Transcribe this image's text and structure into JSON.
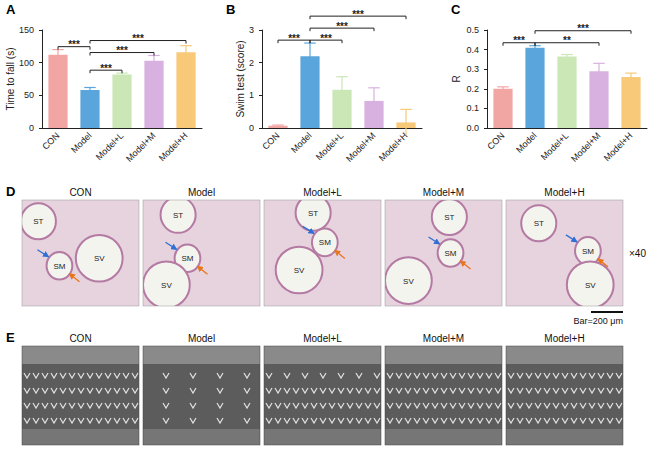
{
  "chart_data": [
    {
      "panel": "A",
      "type": "bar",
      "y_label": "Time to fall (s)",
      "categories": [
        "CON",
        "Model",
        "Model+L",
        "Model+M",
        "Model+H"
      ],
      "values": [
        112,
        58,
        82,
        103,
        116
      ],
      "errors": [
        8,
        4,
        2,
        8,
        10
      ],
      "colors": [
        "#f2a6a4",
        "#5aa6dc",
        "#cbe7b6",
        "#d9b1e1",
        "#f7c978"
      ],
      "ylim": [
        0,
        150
      ],
      "yticks": [
        0,
        50,
        100,
        150
      ],
      "grid": false,
      "comparisons": [
        {
          "groups": [
            "CON",
            "Model"
          ],
          "label": "***"
        },
        {
          "groups": [
            "Model",
            "Model+L"
          ],
          "label": "***"
        },
        {
          "groups": [
            "Model",
            "Model+M"
          ],
          "label": "***"
        },
        {
          "groups": [
            "Model",
            "Model+H"
          ],
          "label": "***"
        }
      ]
    },
    {
      "panel": "B",
      "type": "bar",
      "y_label": "Swim test (score)",
      "categories": [
        "CON",
        "Model",
        "Model+L",
        "Model+M",
        "Model+H"
      ],
      "values": [
        0.07,
        2.2,
        1.17,
        0.83,
        0.17
      ],
      "errors": [
        0.02,
        0.4,
        0.4,
        0.4,
        0.4
      ],
      "colors": [
        "#f2a6a4",
        "#5aa6dc",
        "#cbe7b6",
        "#d9b1e1",
        "#f7c978"
      ],
      "ylim": [
        0,
        3
      ],
      "yticks": [
        0,
        1,
        2,
        3
      ],
      "grid": false,
      "comparisons": [
        {
          "groups": [
            "CON",
            "Model"
          ],
          "label": "***"
        },
        {
          "groups": [
            "Model",
            "Model+L"
          ],
          "label": "***"
        },
        {
          "groups": [
            "Model",
            "Model+M"
          ],
          "label": "***"
        },
        {
          "groups": [
            "Model",
            "Model+H"
          ],
          "label": "***"
        }
      ]
    },
    {
      "panel": "C",
      "type": "bar",
      "y_label": "R",
      "categories": [
        "CON",
        "Model",
        "Model+L",
        "Model+M",
        "Model+H"
      ],
      "values": [
        0.2,
        0.41,
        0.365,
        0.29,
        0.26
      ],
      "errors": [
        0.01,
        0.01,
        0.01,
        0.04,
        0.02
      ],
      "colors": [
        "#f2a6a4",
        "#5aa6dc",
        "#cbe7b6",
        "#d9b1e1",
        "#f7c978"
      ],
      "ylim": [
        0,
        0.5
      ],
      "yticks": [
        {
          "value": 0,
          "label": "0.0"
        },
        {
          "value": 0.1,
          "label": "0.1"
        },
        {
          "value": 0.2,
          "label": "0.2"
        },
        {
          "value": 0.3,
          "label": "0.3"
        },
        {
          "value": 0.4,
          "label": "0.4"
        },
        {
          "value": 0.5,
          "label": "0.5"
        }
      ],
      "grid": false,
      "comparisons": [
        {
          "groups": [
            "CON",
            "Model"
          ],
          "label": "***"
        },
        {
          "groups": [
            "Model",
            "Model+M"
          ],
          "label": "**"
        },
        {
          "groups": [
            "Model",
            "Model+H"
          ],
          "label": "***"
        }
      ]
    }
  ],
  "image_panels": [
    {
      "panel": "D",
      "columns": [
        {
          "title": "CON",
          "labels": [
            "ST",
            "SM",
            "SV"
          ]
        },
        {
          "title": "Model",
          "labels": [
            "ST",
            "SM",
            "SV"
          ]
        },
        {
          "title": "Model+L",
          "labels": [
            "ST",
            "SM",
            "SV"
          ]
        },
        {
          "title": "Model+M",
          "labels": [
            "ST",
            "SM",
            "SV"
          ]
        },
        {
          "title": "Model+H",
          "labels": [
            "ST",
            "SM",
            "SV"
          ]
        }
      ],
      "magnification": "×40",
      "scale_bar": "Bar=200 μm"
    },
    {
      "panel": "E",
      "columns": [
        "CON",
        "Model",
        "Model+L",
        "Model+M",
        "Model+H"
      ]
    }
  ]
}
